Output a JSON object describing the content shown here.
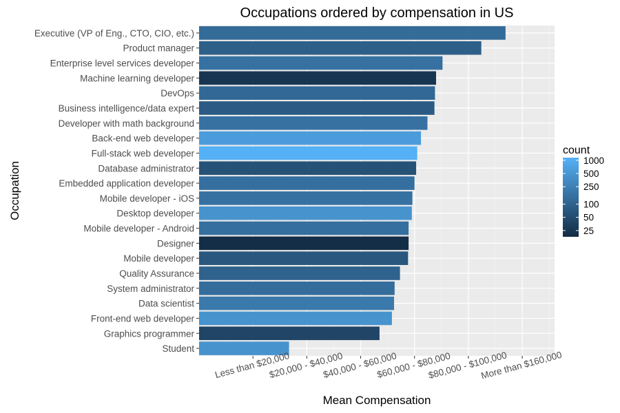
{
  "chart_data": {
    "type": "bar",
    "orientation": "horizontal",
    "title": "Occupations ordered by compensation in US",
    "xlabel": "Mean Compensation",
    "ylabel": "Occupation",
    "x_tick_labels": [
      "Less than $20,000",
      "$20,000 - $40,000",
      "$40,000 - $60,000",
      "$60,000 - $80,000",
      "$80,000 - $100,000",
      "More than $160,000"
    ],
    "x_tick_values": [
      1,
      2,
      3,
      4,
      5,
      6
    ],
    "xlim": [
      0,
      6.6
    ],
    "grid": true,
    "categories": [
      "Executive (VP of Eng., CTO, CIO, etc.)",
      "Product manager",
      "Enterprise level services developer",
      "Machine learning developer",
      "DevOps",
      "Business intelligence/data expert",
      "Developer with math background",
      "Back-end web developer",
      "Full-stack web developer",
      "Database administrator",
      "Embedded application developer",
      "Mobile developer - iOS",
      "Desktop developer",
      "Mobile developer - Android",
      "Designer",
      "Mobile developer",
      "Quality Assurance",
      "System administrator",
      "Data scientist",
      "Front-end web developer",
      "Graphics programmer",
      "Student"
    ],
    "values": [
      5.69,
      5.24,
      4.52,
      4.4,
      4.38,
      4.37,
      4.24,
      4.12,
      4.05,
      4.03,
      4.0,
      3.96,
      3.95,
      3.89,
      3.89,
      3.88,
      3.73,
      3.63,
      3.62,
      3.58,
      3.35,
      1.67
    ],
    "counts": [
      130,
      90,
      160,
      25,
      120,
      80,
      160,
      600,
      1100,
      60,
      150,
      160,
      450,
      150,
      20,
      70,
      100,
      140,
      200,
      450,
      40,
      450
    ],
    "legend": {
      "title": "count",
      "position": "right",
      "breaks": [
        1000,
        500,
        250,
        100,
        50,
        25
      ],
      "labels": [
        "1000",
        "500",
        "250",
        "100",
        "50",
        "25"
      ],
      "color_low": "#132b43",
      "color_high": "#56b1f7"
    }
  }
}
